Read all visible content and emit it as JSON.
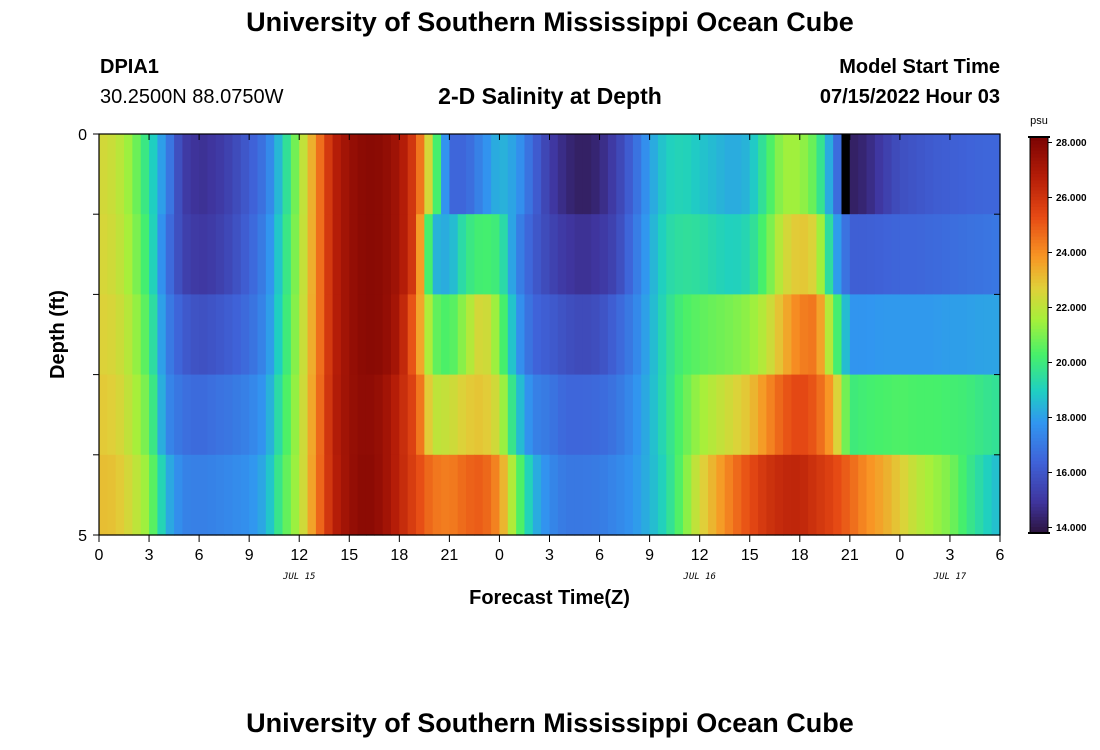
{
  "header": {
    "title": "University of Southern Mississippi Ocean Cube",
    "station_id": "DPIA1",
    "station_coords": "30.2500N  88.0750W",
    "plot_title": "2-D Salinity at Depth",
    "start_label": "Model Start Time",
    "start_value": "07/15/2022 Hour 03"
  },
  "footer": {
    "title": "University of Southern Mississippi Ocean Cube"
  },
  "chart_data": {
    "type": "heatmap",
    "title": "2-D Salinity at Depth",
    "xlabel": "Forecast Time(Z)",
    "ylabel": "Depth (ft)",
    "x_start_hour": 0,
    "x_end_hour": 54,
    "x_ticks": [
      {
        "h": 0,
        "label": "0"
      },
      {
        "h": 3,
        "label": "3"
      },
      {
        "h": 6,
        "label": "6"
      },
      {
        "h": 9,
        "label": "9"
      },
      {
        "h": 12,
        "label": "12"
      },
      {
        "h": 15,
        "label": "15"
      },
      {
        "h": 18,
        "label": "18"
      },
      {
        "h": 21,
        "label": "21"
      },
      {
        "h": 24,
        "label": "0"
      },
      {
        "h": 27,
        "label": "3"
      },
      {
        "h": 30,
        "label": "6"
      },
      {
        "h": 33,
        "label": "9"
      },
      {
        "h": 36,
        "label": "12"
      },
      {
        "h": 39,
        "label": "15"
      },
      {
        "h": 42,
        "label": "18"
      },
      {
        "h": 45,
        "label": "21"
      },
      {
        "h": 48,
        "label": "0"
      },
      {
        "h": 51,
        "label": "3"
      },
      {
        "h": 54,
        "label": "6"
      }
    ],
    "date_labels": [
      {
        "h": 12,
        "label": "JUL 15"
      },
      {
        "h": 36,
        "label": "JUL 16"
      },
      {
        "h": 51,
        "label": "JUL 17"
      }
    ],
    "y_ticks": [
      {
        "v": 0,
        "label": "0"
      },
      {
        "v": 5,
        "label": "5"
      }
    ],
    "ylim": [
      0,
      5
    ],
    "depth_bands": 5,
    "colorbar": {
      "unit": "psu",
      "min": 13.8,
      "max": 28.2,
      "ticks": [
        14,
        16,
        18,
        20,
        22,
        24,
        26,
        28
      ],
      "tick_labels": [
        "14.000",
        "16.000",
        "18.000",
        "20.000",
        "22.000",
        "24.000",
        "26.000",
        "28.000"
      ]
    },
    "salinity_psu": [
      {
        "hour": 0,
        "values": [
          22.5,
          22.6,
          22.7,
          22.9,
          23.1
        ]
      },
      {
        "hour": 1,
        "values": [
          22.2,
          22.3,
          22.5,
          22.7,
          23.0
        ]
      },
      {
        "hour": 2,
        "values": [
          21.2,
          21.4,
          21.7,
          21.9,
          22.3
        ]
      },
      {
        "hour": 3,
        "values": [
          19.5,
          19.8,
          20.2,
          20.7,
          21.2
        ]
      },
      {
        "hour": 4,
        "values": [
          17.5,
          17.0,
          17.3,
          17.5,
          18.5
        ]
      },
      {
        "hour": 5,
        "values": [
          15.2,
          15.4,
          16.2,
          16.8,
          17.3
        ]
      },
      {
        "hour": 6,
        "values": [
          14.8,
          15.0,
          15.8,
          16.6,
          17.2
        ]
      },
      {
        "hour": 7,
        "values": [
          15.0,
          15.2,
          16.0,
          16.8,
          17.3
        ]
      },
      {
        "hour": 8,
        "values": [
          15.5,
          15.7,
          16.3,
          17.0,
          17.5
        ]
      },
      {
        "hour": 9,
        "values": [
          16.2,
          16.4,
          16.7,
          17.3,
          17.7
        ]
      },
      {
        "hour": 10,
        "values": [
          17.0,
          17.3,
          17.5,
          17.9,
          18.3
        ]
      },
      {
        "hour": 11,
        "values": [
          19.0,
          19.3,
          19.5,
          19.9,
          20.3
        ]
      },
      {
        "hour": 12,
        "values": [
          21.5,
          21.6,
          21.7,
          21.8,
          21.8
        ]
      },
      {
        "hour": 13,
        "values": [
          24.0,
          24.0,
          24.0,
          24.1,
          24.2
        ]
      },
      {
        "hour": 14,
        "values": [
          26.5,
          26.5,
          26.5,
          26.6,
          26.5
        ]
      },
      {
        "hour": 15,
        "values": [
          27.5,
          27.5,
          27.5,
          27.5,
          27.5
        ]
      },
      {
        "hour": 16,
        "values": [
          27.9,
          27.9,
          27.9,
          27.8,
          27.9
        ]
      },
      {
        "hour": 17,
        "values": [
          27.8,
          27.8,
          27.8,
          27.5,
          27.5
        ]
      },
      {
        "hour": 18,
        "values": [
          27.2,
          27.2,
          27.0,
          26.5,
          26.5
        ]
      },
      {
        "hour": 19,
        "values": [
          25.5,
          25.5,
          24.5,
          25.3,
          25.5
        ]
      },
      {
        "hour": 20,
        "values": [
          21.5,
          18.5,
          20.8,
          22.0,
          24.5
        ]
      },
      {
        "hour": 21,
        "values": [
          16.5,
          18.2,
          20.2,
          22.2,
          24.3
        ]
      },
      {
        "hour": 22,
        "values": [
          16.5,
          19.8,
          21.5,
          22.8,
          24.8
        ]
      },
      {
        "hour": 23,
        "values": [
          17.5,
          20.3,
          22.8,
          23.0,
          25.0
        ]
      },
      {
        "hour": 24,
        "values": [
          18.5,
          20.0,
          21.0,
          22.2,
          24.0
        ]
      },
      {
        "hour": 25,
        "values": [
          18.0,
          17.5,
          18.0,
          19.0,
          21.0
        ]
      },
      {
        "hour": 26,
        "values": [
          16.5,
          16.2,
          16.5,
          17.3,
          18.5
        ]
      },
      {
        "hour": 27,
        "values": [
          15.2,
          15.5,
          16.2,
          17.0,
          17.5
        ]
      },
      {
        "hour": 28,
        "values": [
          14.5,
          15.0,
          15.8,
          16.5,
          17.0
        ]
      },
      {
        "hour": 29,
        "values": [
          14.2,
          14.8,
          15.6,
          16.5,
          17.0
        ]
      },
      {
        "hour": 30,
        "values": [
          14.5,
          15.0,
          15.8,
          16.6,
          17.1
        ]
      },
      {
        "hour": 31,
        "values": [
          15.3,
          15.5,
          16.4,
          16.9,
          17.4
        ]
      },
      {
        "hour": 32,
        "values": [
          16.5,
          16.8,
          17.2,
          17.6,
          17.8
        ]
      },
      {
        "hour": 33,
        "values": [
          18.0,
          18.2,
          18.3,
          18.4,
          18.4
        ]
      },
      {
        "hour": 34,
        "values": [
          19.0,
          19.3,
          19.5,
          19.5,
          19.3
        ]
      },
      {
        "hour": 35,
        "values": [
          19.2,
          19.6,
          20.3,
          20.6,
          20.8
        ]
      },
      {
        "hour": 36,
        "values": [
          18.8,
          19.5,
          20.6,
          21.5,
          22.5
        ]
      },
      {
        "hour": 37,
        "values": [
          18.5,
          19.2,
          20.8,
          22.0,
          23.5
        ]
      },
      {
        "hour": 38,
        "values": [
          18.2,
          19.0,
          21.0,
          22.5,
          24.5
        ]
      },
      {
        "hour": 39,
        "values": [
          18.5,
          19.3,
          21.3,
          23.0,
          25.3
        ]
      },
      {
        "hour": 40,
        "values": [
          20.0,
          20.6,
          22.0,
          24.0,
          26.0
        ]
      },
      {
        "hour": 41,
        "values": [
          21.5,
          22.3,
          23.3,
          25.0,
          26.4
        ]
      },
      {
        "hour": 42,
        "values": [
          21.5,
          23.0,
          24.3,
          25.5,
          26.5
        ]
      },
      {
        "hour": 43,
        "values": [
          20.5,
          22.5,
          24.5,
          25.0,
          26.0
        ]
      },
      {
        "hour": 44,
        "values": [
          17.5,
          18.5,
          21.0,
          23.5,
          25.5
        ]
      },
      {
        "hour": 45,
        "values": [
          14.2,
          16.3,
          17.8,
          20.0,
          24.8
        ]
      },
      {
        "hour": 46,
        "values": [
          14.5,
          16.3,
          17.8,
          20.2,
          24.0
        ]
      },
      {
        "hour": 47,
        "values": [
          15.2,
          16.4,
          17.9,
          20.3,
          23.5
        ]
      },
      {
        "hour": 48,
        "values": [
          15.8,
          16.5,
          17.9,
          20.4,
          22.8
        ]
      },
      {
        "hour": 49,
        "values": [
          16.0,
          16.5,
          17.9,
          20.3,
          22.0
        ]
      },
      {
        "hour": 50,
        "values": [
          16.2,
          16.6,
          17.9,
          20.3,
          21.5
        ]
      },
      {
        "hour": 51,
        "values": [
          16.3,
          16.7,
          18.0,
          20.2,
          21.0
        ]
      },
      {
        "hour": 52,
        "values": [
          16.4,
          16.8,
          18.0,
          20.1,
          20.0
        ]
      },
      {
        "hour": 53,
        "values": [
          16.5,
          16.9,
          18.1,
          19.8,
          19.2
        ]
      },
      {
        "hour": 54,
        "values": [
          16.5,
          17.0,
          18.1,
          19.6,
          18.5
        ]
      }
    ],
    "missing_cells": [
      {
        "hour": 45,
        "band": 0
      }
    ]
  }
}
